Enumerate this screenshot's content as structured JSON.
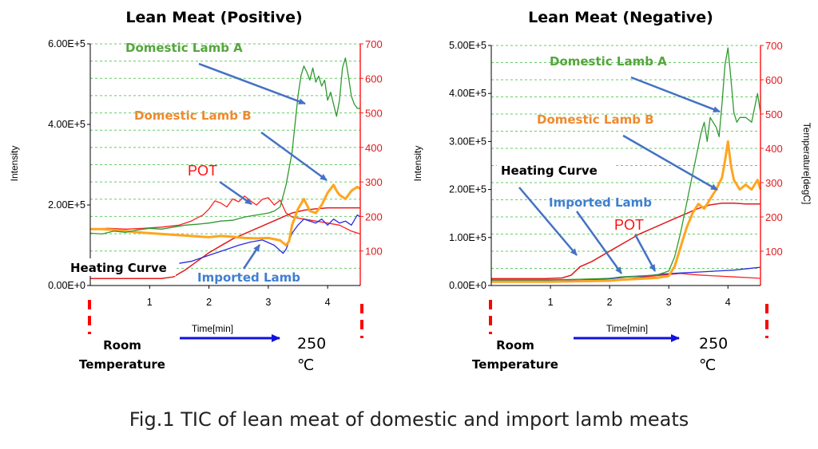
{
  "caption": "Fig.1 TIC of lean meat of domestic and import lamb meats",
  "colors": {
    "domestic_a": "#2f9a2f",
    "domestic_b": "#ffa51f",
    "imported": "#2a2ae0",
    "pot": "#ff2020",
    "heating": "#e01b1b",
    "arrow": "#4472c4",
    "grid": "#66cc66",
    "right_axis": "#ff2020",
    "ann_green": "#54a63b",
    "ann_orange": "#ee8a30",
    "ann_blue": "#3f7fcf",
    "ann_red": "#ff1010",
    "temp_arrow": "#1010e0"
  },
  "chart_data": [
    {
      "type": "line",
      "title": "Lean Meat (Positive)",
      "xlabel": "Time[min]",
      "ylabel": "Intensity",
      "y2label": "",
      "xlim": [
        0,
        4.55
      ],
      "ylim": [
        0,
        600000
      ],
      "y2lim": [
        0,
        700
      ],
      "x_ticks": [
        "1",
        "2",
        "3",
        "4"
      ],
      "y_ticks": [
        "0.00E+0",
        "2.00E+5",
        "4.00E+5",
        "6.00E+5"
      ],
      "y2_ticks": [
        "100",
        "200",
        "300",
        "400",
        "500",
        "600",
        "700"
      ],
      "grid": true,
      "series": [
        {
          "name": "Domestic Lamb A",
          "color_key": "domestic_a",
          "x": [
            0,
            0.2,
            0.4,
            0.6,
            0.8,
            1.0,
            1.2,
            1.4,
            1.6,
            1.8,
            2.0,
            2.2,
            2.4,
            2.6,
            2.8,
            3.0,
            3.1,
            3.2,
            3.3,
            3.4,
            3.45,
            3.5,
            3.55,
            3.6,
            3.65,
            3.7,
            3.75,
            3.8,
            3.85,
            3.9,
            3.95,
            4.0,
            4.05,
            4.1,
            4.15,
            4.2,
            4.25,
            4.3,
            4.35,
            4.4,
            4.45,
            4.5,
            4.55
          ],
          "y": [
            130000,
            128000,
            135000,
            132000,
            138000,
            142000,
            140000,
            145000,
            150000,
            152000,
            155000,
            160000,
            162000,
            170000,
            175000,
            180000,
            185000,
            195000,
            250000,
            330000,
            400000,
            470000,
            520000,
            545000,
            530000,
            510000,
            540000,
            505000,
            520000,
            495000,
            510000,
            460000,
            480000,
            450000,
            420000,
            460000,
            540000,
            565000,
            520000,
            470000,
            450000,
            440000,
            440000
          ]
        },
        {
          "name": "Domestic Lamb B",
          "color_key": "domestic_b",
          "x": [
            0,
            0.2,
            0.4,
            0.6,
            0.8,
            1.0,
            1.2,
            1.4,
            1.6,
            1.8,
            2.0,
            2.2,
            2.4,
            2.6,
            2.8,
            3.0,
            3.1,
            3.2,
            3.3,
            3.35,
            3.4,
            3.5,
            3.6,
            3.7,
            3.8,
            3.9,
            4.0,
            4.1,
            4.15,
            4.2,
            4.3,
            4.4,
            4.5,
            4.55
          ],
          "y": [
            140000,
            140000,
            138000,
            135000,
            132000,
            130000,
            128000,
            126000,
            124000,
            122000,
            120000,
            123000,
            121000,
            118000,
            117000,
            118000,
            115000,
            112000,
            100000,
            110000,
            150000,
            190000,
            215000,
            185000,
            180000,
            200000,
            230000,
            250000,
            235000,
            225000,
            215000,
            235000,
            245000,
            240000
          ]
        },
        {
          "name": "Imported Lamb",
          "color_key": "imported",
          "x": [
            1.5,
            1.7,
            1.9,
            2.1,
            2.3,
            2.5,
            2.7,
            2.9,
            3.1,
            3.25,
            3.3,
            3.35,
            3.4,
            3.5,
            3.6,
            3.7,
            3.8,
            3.9,
            4.0,
            4.1,
            4.2,
            4.3,
            4.4,
            4.5,
            4.55
          ],
          "y": [
            55000,
            60000,
            70000,
            80000,
            90000,
            100000,
            108000,
            113000,
            100000,
            80000,
            90000,
            110000,
            130000,
            150000,
            165000,
            160000,
            155000,
            165000,
            150000,
            165000,
            155000,
            160000,
            150000,
            175000,
            170000
          ]
        },
        {
          "name": "POT",
          "color_key": "pot",
          "x": [
            0,
            0.3,
            0.6,
            0.9,
            1.2,
            1.5,
            1.7,
            1.9,
            2.0,
            2.1,
            2.2,
            2.3,
            2.4,
            2.5,
            2.6,
            2.7,
            2.8,
            2.9,
            3.0,
            3.1,
            3.2,
            3.3,
            3.4,
            3.6,
            3.8,
            4.0,
            4.2,
            4.4,
            4.55
          ],
          "y": [
            140000,
            142000,
            140000,
            142000,
            145000,
            150000,
            160000,
            175000,
            190000,
            210000,
            205000,
            195000,
            215000,
            208000,
            222000,
            210000,
            200000,
            214000,
            218000,
            200000,
            212000,
            180000,
            170000,
            165000,
            160000,
            155000,
            150000,
            135000,
            128000
          ]
        }
      ],
      "heating_curve": {
        "x": [
          0,
          0.3,
          0.6,
          0.9,
          1.2,
          1.4,
          1.6,
          1.8,
          2.0,
          2.2,
          2.4,
          2.6,
          2.8,
          3.0,
          3.2,
          3.4,
          3.6,
          3.8,
          4.0,
          4.2,
          4.4,
          4.55
        ],
        "y": [
          20,
          20,
          20,
          20,
          20,
          25,
          45,
          70,
          95,
          115,
          135,
          150,
          165,
          180,
          195,
          210,
          218,
          222,
          225,
          225,
          225,
          225
        ]
      },
      "annotations": [
        "Domestic Lamb A",
        "Domestic Lamb B",
        "POT",
        "Heating Curve",
        "Imported Lamb"
      ],
      "temp_range": {
        "start_label": "Room\nTemperature",
        "end_value": "250",
        "end_unit": "℃"
      }
    },
    {
      "type": "line",
      "title": "Lean Meat (Negative)",
      "xlabel": "Time[min]",
      "ylabel": "Intensity",
      "y2label": "Temperature[degC]",
      "xlim": [
        0,
        4.55
      ],
      "ylim": [
        0,
        500000
      ],
      "y2lim": [
        0,
        700
      ],
      "x_ticks": [
        "1",
        "2",
        "3",
        "4"
      ],
      "y_ticks": [
        "0.00E+0",
        "1.00E+5",
        "2.00E+5",
        "3.00E+5",
        "4.00E+5",
        "5.00E+5"
      ],
      "y2_ticks": [
        "100",
        "200",
        "300",
        "400",
        "500",
        "600",
        "700"
      ],
      "grid": true,
      "series": [
        {
          "name": "Domestic Lamb A",
          "color_key": "domestic_a",
          "x": [
            0,
            0.5,
            1.0,
            1.5,
            2.0,
            2.2,
            2.5,
            2.8,
            3.0,
            3.1,
            3.2,
            3.3,
            3.4,
            3.5,
            3.55,
            3.6,
            3.65,
            3.7,
            3.75,
            3.8,
            3.85,
            3.9,
            3.95,
            4.0,
            4.05,
            4.1,
            4.15,
            4.2,
            4.3,
            4.4,
            4.5,
            4.55
          ],
          "y": [
            12000,
            12000,
            12000,
            13000,
            15000,
            18000,
            20000,
            22000,
            30000,
            60000,
            110000,
            170000,
            230000,
            290000,
            320000,
            340000,
            300000,
            350000,
            340000,
            330000,
            310000,
            380000,
            460000,
            495000,
            430000,
            360000,
            340000,
            350000,
            350000,
            340000,
            400000,
            360000
          ]
        },
        {
          "name": "Domestic Lamb B",
          "color_key": "domestic_b",
          "x": [
            0,
            0.5,
            1.0,
            1.5,
            2.0,
            2.2,
            2.5,
            2.8,
            3.0,
            3.1,
            3.2,
            3.3,
            3.4,
            3.5,
            3.6,
            3.7,
            3.8,
            3.9,
            3.95,
            4.0,
            4.05,
            4.1,
            4.2,
            4.3,
            4.4,
            4.5,
            4.55
          ],
          "y": [
            8000,
            8000,
            8000,
            9000,
            10000,
            12000,
            14000,
            16000,
            20000,
            40000,
            80000,
            120000,
            150000,
            170000,
            160000,
            180000,
            200000,
            225000,
            260000,
            300000,
            250000,
            220000,
            200000,
            210000,
            200000,
            220000,
            200000
          ]
        },
        {
          "name": "Imported Lamb",
          "color_key": "imported",
          "x": [
            0,
            0.5,
            1.0,
            1.5,
            2.0,
            2.3,
            2.6,
            2.9,
            3.2,
            3.5,
            3.8,
            4.1,
            4.4,
            4.55
          ],
          "y": [
            10000,
            10000,
            10000,
            11000,
            14000,
            18000,
            20000,
            24000,
            26000,
            28000,
            30000,
            32000,
            36000,
            38000
          ]
        },
        {
          "name": "POT",
          "color_key": "pot",
          "x": [
            0,
            0.5,
            1.0,
            1.5,
            2.0,
            2.3,
            2.6,
            2.9,
            3.2,
            3.5,
            3.8,
            4.1,
            4.4,
            4.55
          ],
          "y": [
            7000,
            7000,
            7000,
            8000,
            10000,
            14000,
            18000,
            22000,
            25000,
            22000,
            20000,
            18000,
            16000,
            15000
          ]
        }
      ],
      "heating_curve": {
        "x": [
          0,
          0.3,
          0.6,
          0.9,
          1.2,
          1.35,
          1.5,
          1.7,
          1.9,
          2.1,
          2.3,
          2.5,
          2.7,
          2.9,
          3.1,
          3.3,
          3.5,
          3.7,
          3.9,
          4.1,
          4.3,
          4.55
        ],
        "y": [
          20,
          20,
          20,
          20,
          22,
          30,
          55,
          70,
          90,
          110,
          130,
          150,
          165,
          180,
          195,
          210,
          225,
          235,
          240,
          240,
          238,
          238
        ]
      },
      "annotations": [
        "Domestic Lamb A",
        "Domestic Lamb B",
        "Heating Curve",
        "Imported Lamb",
        "POT"
      ],
      "temp_range": {
        "start_label": "Room\nTemperature",
        "end_value": "250",
        "end_unit": "℃"
      }
    }
  ]
}
